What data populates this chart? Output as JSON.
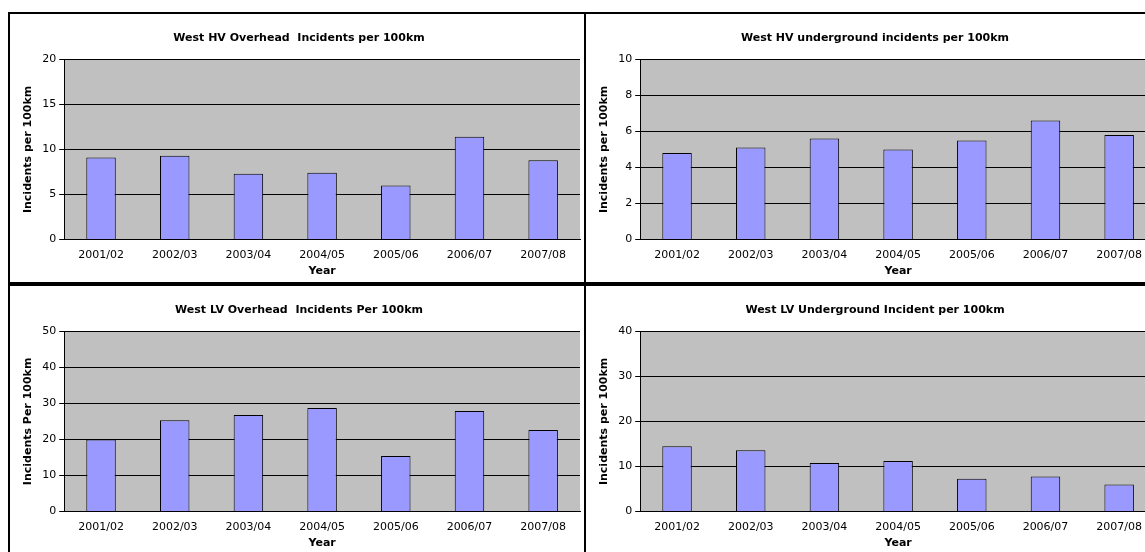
{
  "chart_data": [
    {
      "type": "bar",
      "title": "West HV Overhead  Incidents per 100km",
      "xlabel": "Year",
      "ylabel": "Incidents per 100km",
      "categories": [
        "2001/02",
        "2002/03",
        "2003/04",
        "2004/05",
        "2005/06",
        "2006/07",
        "2007/08"
      ],
      "values": [
        9.1,
        9.3,
        7.3,
        7.4,
        6.0,
        11.4,
        8.8
      ],
      "color": "#9999ff",
      "ylim": [
        0,
        20
      ],
      "yticks": [
        0,
        5,
        10,
        15,
        20
      ],
      "grid": "y",
      "legend": false
    },
    {
      "type": "bar",
      "title": "West HV underground incidents per 100km",
      "xlabel": "Year",
      "ylabel": "Incidents per 100km",
      "categories": [
        "2001/02",
        "2002/03",
        "2003/04",
        "2004/05",
        "2005/06",
        "2006/07",
        "2007/08"
      ],
      "values": [
        4.8,
        5.1,
        5.6,
        5.0,
        5.5,
        6.6,
        5.8
      ],
      "color": "#9999ff",
      "ylim": [
        0,
        10
      ],
      "yticks": [
        0,
        2,
        4,
        6,
        8,
        10
      ],
      "grid": "y",
      "legend": false
    },
    {
      "type": "bar",
      "title": "West LV Overhead  Incidents Per 100km",
      "xlabel": "Year",
      "ylabel": "Incidents Per 100km",
      "categories": [
        "2001/02",
        "2002/03",
        "2003/04",
        "2004/05",
        "2005/06",
        "2006/07",
        "2007/08"
      ],
      "values": [
        20,
        25.3,
        26.8,
        28.7,
        15.4,
        27.9,
        22.6
      ],
      "color": "#9999ff",
      "ylim": [
        0,
        50
      ],
      "yticks": [
        0,
        10,
        20,
        30,
        40,
        50
      ],
      "grid": "y",
      "legend": false
    },
    {
      "type": "bar",
      "title": "West LV Underground Incident per 100km",
      "xlabel": "Year",
      "ylabel": "Incidents per 100km",
      "categories": [
        "2001/02",
        "2002/03",
        "2003/04",
        "2004/05",
        "2005/06",
        "2006/07",
        "2007/08"
      ],
      "values": [
        14.5,
        13.6,
        10.8,
        11.2,
        7.3,
        7.8,
        6.0
      ],
      "color": "#9999ff",
      "ylim": [
        0,
        40
      ],
      "yticks": [
        0,
        10,
        20,
        30,
        40
      ],
      "grid": "y",
      "legend": false
    }
  ]
}
